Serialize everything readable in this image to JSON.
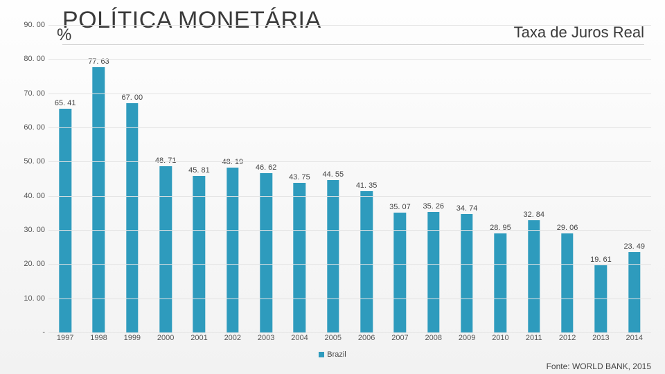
{
  "title": "POLÍTICA MONETÁRIA",
  "subtitle": "Taxa de Juros Real",
  "y_unit": "%",
  "chart": {
    "type": "bar",
    "categories": [
      "1997",
      "1998",
      "1999",
      "2000",
      "2001",
      "2002",
      "2003",
      "2004",
      "2005",
      "2006",
      "2007",
      "2008",
      "2009",
      "2010",
      "2011",
      "2012",
      "2013",
      "2014"
    ],
    "values": [
      65.41,
      77.63,
      67.0,
      48.71,
      45.81,
      48.19,
      46.62,
      43.75,
      44.55,
      41.35,
      35.07,
      35.26,
      34.74,
      28.95,
      32.84,
      29.06,
      19.61,
      23.49
    ],
    "bar_color": "#2e9bbd",
    "bar_width_percent": 36,
    "ylim": [
      0,
      90
    ],
    "ytick_step": 10,
    "gridline_color": "#e3e3e3",
    "label_fontsize": 11,
    "legend_label": "Brazil",
    "legend_swatch_color": "#2e9bbd"
  },
  "source": "Fonte: WORLD BANK, 2015",
  "y_zero_label": "-"
}
